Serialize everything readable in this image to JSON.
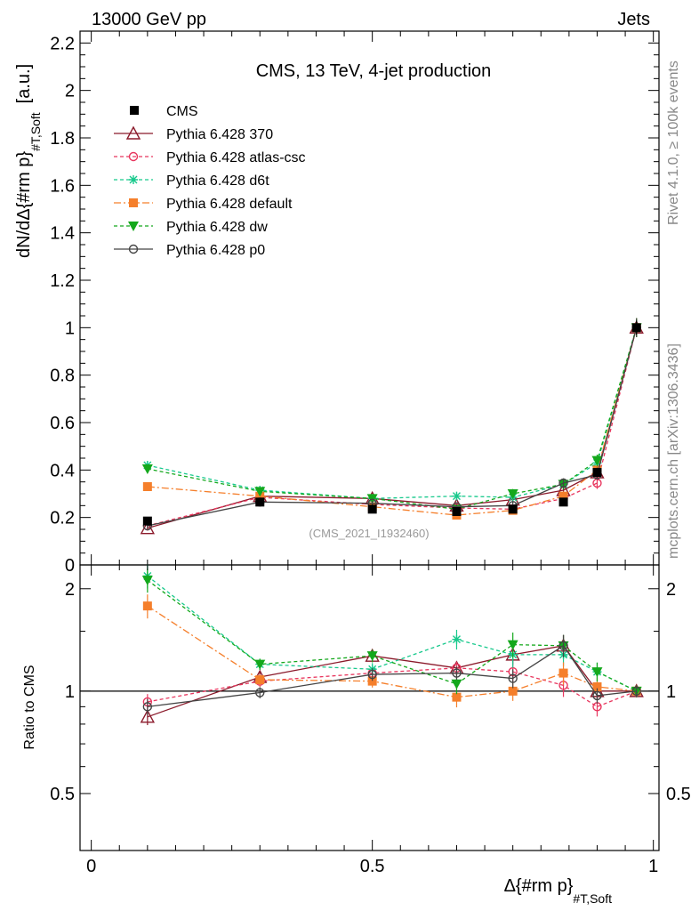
{
  "header": {
    "left": "13000 GeV pp",
    "right": "Jets"
  },
  "side_labels": {
    "rivet": "Rivet 4.1.0, ≥ 100k events",
    "mcplots": "mcplots.cern.ch [arXiv:1306.3436]"
  },
  "chart_data": {
    "type": "line",
    "title": "CMS, 13 TeV, 4-jet production",
    "analysis_tag": "(CMS_2021_I1932460)",
    "xlabel_main": "Δ{#rm p}",
    "xlabel_sub": "#T,Soft",
    "ylabel_main": "dN/dΔ{#rm p}",
    "ylabel_sub": "#T,Soft",
    "ylabel_unit": "[a.u.]",
    "ratio_ylabel": "Ratio to CMS",
    "xlim": [
      -0.02,
      1.01
    ],
    "ylim": [
      0,
      2.25
    ],
    "ratio_ylim": [
      0.34,
      2.35
    ],
    "x_ticks": [
      0,
      0.5,
      1
    ],
    "x_tick_labels": [
      "0",
      "0.5",
      "1"
    ],
    "y_ticks": [
      0,
      0.2,
      0.4,
      0.6,
      0.8,
      1,
      1.2,
      1.4,
      1.6,
      1.8,
      2,
      2.2
    ],
    "y_tick_labels": [
      "0",
      "0.2",
      "0.4",
      "0.6",
      "0.8",
      "1",
      "1.2",
      "1.4",
      "1.6",
      "1.8",
      "2",
      "2.2"
    ],
    "ratio_ticks": [
      0.5,
      1,
      2
    ],
    "ratio_tick_labels": [
      "0.5",
      "1",
      "2"
    ],
    "x": [
      0.1,
      0.3,
      0.5,
      0.65,
      0.75,
      0.84,
      0.9,
      0.97
    ],
    "data": {
      "name": "CMS",
      "values": [
        0.185,
        0.265,
        0.235,
        0.225,
        0.235,
        0.265,
        0.39,
        1.0
      ],
      "errors": [
        0.01,
        0.01,
        0.01,
        0.01,
        0.01,
        0.01,
        0.02,
        0.03
      ]
    },
    "series": [
      {
        "name": "Pythia 6.428 370",
        "color": "#8b1a2b",
        "dash": "",
        "marker": "triangle-open",
        "values": [
          0.155,
          0.29,
          0.28,
          0.25,
          0.275,
          0.315,
          0.39,
          1.0
        ],
        "ratio": [
          0.84,
          1.1,
          1.27,
          1.17,
          1.28,
          1.36,
          1.0,
          1.0
        ],
        "errors": [
          0.01,
          0.01,
          0.01,
          0.01,
          0.015,
          0.02,
          0.02,
          0.04
        ]
      },
      {
        "name": "Pythia 6.428 atlas-csc",
        "color": "#e8365e",
        "dash": "4,3",
        "marker": "circle-open",
        "values": [
          0.165,
          0.285,
          0.255,
          0.24,
          0.235,
          0.28,
          0.345,
          1.0
        ],
        "ratio": [
          0.93,
          1.07,
          1.13,
          1.17,
          1.14,
          1.04,
          0.9,
          1.0
        ],
        "errors": [
          0.01,
          0.01,
          0.01,
          0.01,
          0.015,
          0.02,
          0.025,
          0.04
        ]
      },
      {
        "name": "Pythia 6.428 d6t",
        "color": "#17c98c",
        "dash": "4,3",
        "marker": "star",
        "values": [
          0.42,
          0.315,
          0.28,
          0.29,
          0.285,
          0.34,
          0.43,
          1.0
        ],
        "ratio": [
          2.18,
          1.2,
          1.16,
          1.42,
          1.28,
          1.28,
          1.14,
          1.0
        ],
        "errors": [
          0.015,
          0.01,
          0.01,
          0.015,
          0.02,
          0.02,
          0.025,
          0.04
        ]
      },
      {
        "name": "Pythia 6.428 default",
        "color": "#f57f2b",
        "dash": "8,3,2,3",
        "marker": "square",
        "values": [
          0.33,
          0.29,
          0.245,
          0.21,
          0.23,
          0.29,
          0.4,
          1.0
        ],
        "ratio": [
          1.78,
          1.08,
          1.07,
          0.96,
          1.0,
          1.13,
          1.03,
          1.0
        ],
        "errors": [
          0.015,
          0.01,
          0.01,
          0.015,
          0.015,
          0.02,
          0.025,
          0.04
        ]
      },
      {
        "name": "Pythia 6.428 dw",
        "color": "#14a81c",
        "dash": "4,3",
        "marker": "triangle-down",
        "values": [
          0.405,
          0.31,
          0.28,
          0.235,
          0.3,
          0.34,
          0.44,
          1.0
        ],
        "ratio": [
          2.12,
          1.2,
          1.27,
          1.05,
          1.37,
          1.36,
          1.14,
          1.0
        ],
        "errors": [
          0.015,
          0.01,
          0.01,
          0.015,
          0.02,
          0.02,
          0.025,
          0.04
        ]
      },
      {
        "name": "Pythia 6.428 p0",
        "color": "#444444",
        "dash": "",
        "marker": "circle-open",
        "values": [
          0.165,
          0.265,
          0.26,
          0.245,
          0.25,
          0.345,
          0.38,
          1.0
        ],
        "ratio": [
          0.9,
          0.99,
          1.12,
          1.13,
          1.09,
          1.36,
          0.97,
          1.0
        ],
        "errors": [
          0.01,
          0.01,
          0.01,
          0.01,
          0.015,
          0.02,
          0.02,
          0.04
        ]
      }
    ]
  }
}
